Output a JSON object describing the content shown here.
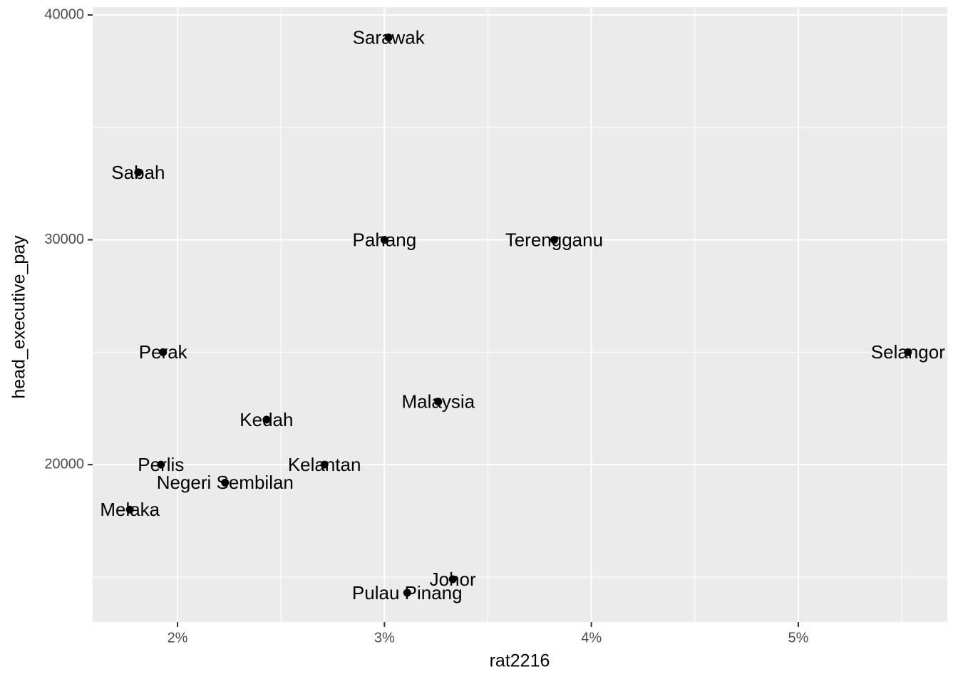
{
  "chart_data": {
    "type": "scatter",
    "x_label": "rat2216",
    "y_label": "head_executive_pay",
    "labels": [
      "Sarawak",
      "Sabah",
      "Pahang",
      "Terengganu",
      "Selangor",
      "Perak",
      "Malaysia",
      "Kedah",
      "Perlis",
      "Kelantan",
      "Negeri Sembilan",
      "Melaka",
      "Johor",
      "Pulau Pinang"
    ],
    "x": [
      3.02,
      1.81,
      3.0,
      3.82,
      5.53,
      1.93,
      3.26,
      2.43,
      1.92,
      2.71,
      2.23,
      1.77,
      3.33,
      3.11
    ],
    "values": [
      39000,
      33000,
      30000,
      30000,
      25000,
      25000,
      22800,
      22000,
      20000,
      20000,
      19200,
      18000,
      14900,
      14300
    ],
    "color": "#000000",
    "xlim": [
      1.59,
      5.72
    ],
    "ylim": [
      13000,
      40350
    ],
    "xticks": [
      {
        "value": 2,
        "label": "2%"
      },
      {
        "value": 3,
        "label": "3%"
      },
      {
        "value": 4,
        "label": "4%"
      },
      {
        "value": 5,
        "label": "5%"
      }
    ],
    "yticks": [
      20000,
      30000,
      40000
    ],
    "x_minor_ticks": [
      2.5,
      3.5,
      4.5,
      5.5
    ],
    "y_minor_ticks": [
      15000,
      25000,
      35000
    ],
    "grid": true
  }
}
